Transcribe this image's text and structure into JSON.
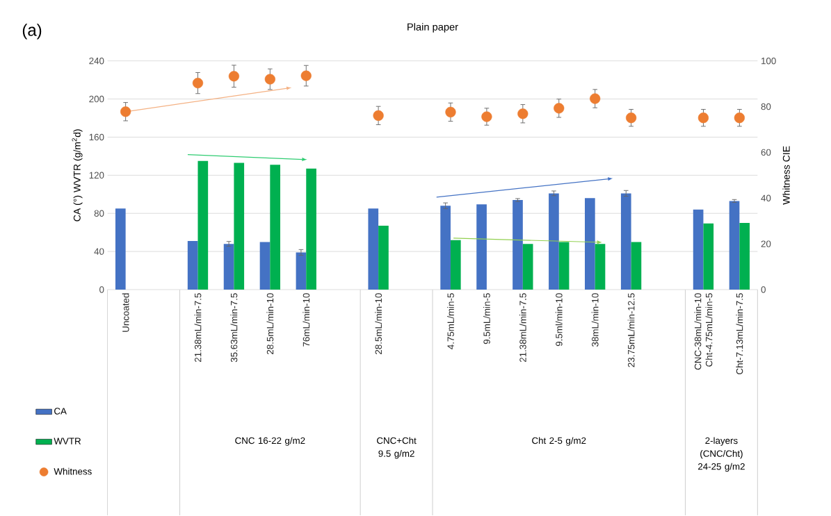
{
  "chart_data": {
    "type": "bar",
    "title": "Plain paper",
    "ylabel": "CA (°) WVTR (g/m$^{2}$d)",
    "y2label": "Whitness CIE",
    "annotations": [
      "(a)",
      "CNC 16-22 g/m2",
      "CNC+Cht 9.5 g/m2",
      "Cht 2-5 g/m2",
      "2-layers (CNC/Cht) 24-25 g/m2"
    ],
    "categories": [
      "Uncoated",
      null,
      "21.38mL/min-7.5",
      "35.63mL/min-7.5",
      "28.5mL/min-10",
      "76mL/min-10",
      null,
      "28.5mL/min-10",
      null,
      "4.75mL/min-5",
      "9.5mL/min-5",
      "21.38mL/min-7.5",
      "9.5ml/min-10",
      "38mL/min-10",
      "23.75mL/min-12.5",
      null,
      "CNC-38mL/min-10 Cht-4.75mL/min-5",
      "Cht-7.13mL/min-7.5"
    ],
    "series": [
      {
        "name": "CA",
        "color": "#4472c4",
        "values": [
          85,
          null,
          51,
          48,
          50,
          39,
          null,
          85,
          null,
          88,
          89.5,
          94,
          101,
          96,
          101,
          null,
          84,
          93
        ],
        "errors": [
          null,
          null,
          null,
          2.5,
          null,
          3,
          null,
          null,
          null,
          3,
          null,
          1.5,
          2.5,
          null,
          3,
          null,
          null,
          1.5
        ]
      },
      {
        "name": "WVTR",
        "color": "#00b050",
        "values": [
          null,
          null,
          135,
          133,
          131,
          127,
          null,
          67,
          null,
          52,
          null,
          48,
          50,
          48,
          50,
          null,
          69.5,
          70
        ]
      },
      {
        "name": "Whitness",
        "type": "scatter",
        "axis": "y2",
        "color": "#ed7d31",
        "values": [
          77.8,
          null,
          90.3,
          93.3,
          92,
          93.5,
          null,
          76.1,
          null,
          77.6,
          75.6,
          76.9,
          79.3,
          83.5,
          75.1,
          null,
          75.1,
          75.1
        ],
        "errors": [
          4,
          null,
          4.6,
          4.8,
          4.5,
          4.5,
          null,
          4,
          null,
          4,
          3.7,
          4,
          4,
          4,
          3.7,
          null,
          3.7,
          3.7
        ]
      }
    ],
    "ylim": [
      0,
      240
    ],
    "yticks": [
      0,
      40,
      80,
      120,
      160,
      200,
      240
    ],
    "y2lim": [
      0,
      100
    ],
    "y2ticks": [
      0,
      20,
      40,
      60,
      80,
      100
    ],
    "grid": "y",
    "legend": "bottom left"
  }
}
